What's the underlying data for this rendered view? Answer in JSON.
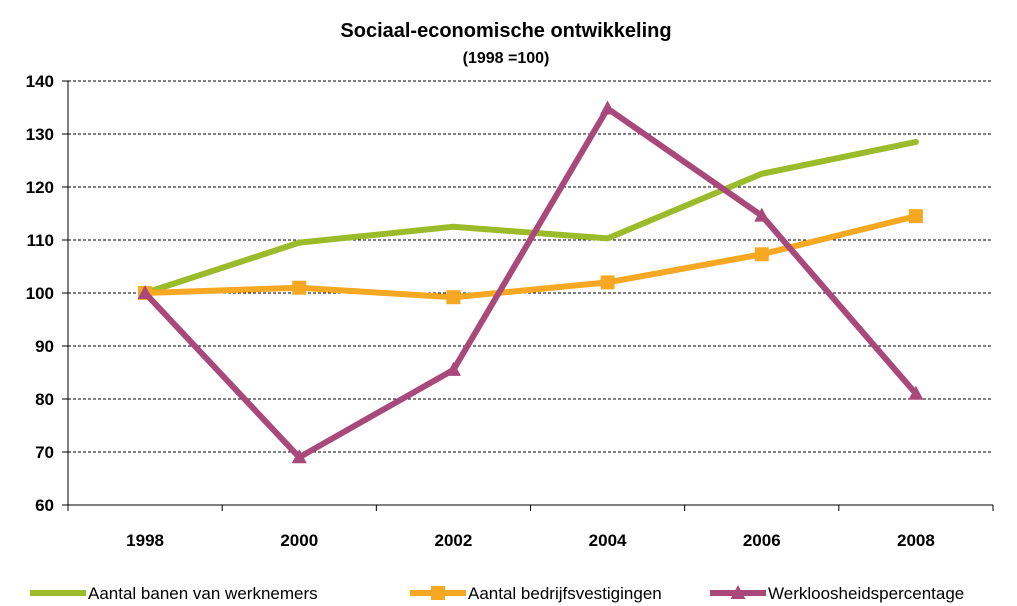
{
  "chart_data": {
    "type": "line",
    "title": "Sociaal-economische ontwikkeling",
    "subtitle": "(1998 =100)",
    "categories": [
      "1998",
      "2000",
      "2002",
      "2004",
      "2006",
      "2008"
    ],
    "ylim": [
      60,
      140
    ],
    "yticks": [
      60,
      70,
      80,
      90,
      100,
      110,
      120,
      130,
      140
    ],
    "grid": true,
    "legend_position": "bottom",
    "series": [
      {
        "name": "Aantal banen van werknemers",
        "values": [
          100,
          109.5,
          112.5,
          110.3,
          122.5,
          128.5
        ],
        "color": "#9BBB2B",
        "marker": "none"
      },
      {
        "name": "Aantal bedrijfsvestigingen",
        "values": [
          100,
          101,
          99.2,
          102,
          107.3,
          114.5
        ],
        "color": "#F7A823",
        "marker": "square"
      },
      {
        "name": "Werkloosheidspercentage",
        "values": [
          100,
          69,
          85.5,
          134.8,
          114.6,
          81
        ],
        "color": "#A9487A",
        "marker": "triangle"
      }
    ]
  }
}
